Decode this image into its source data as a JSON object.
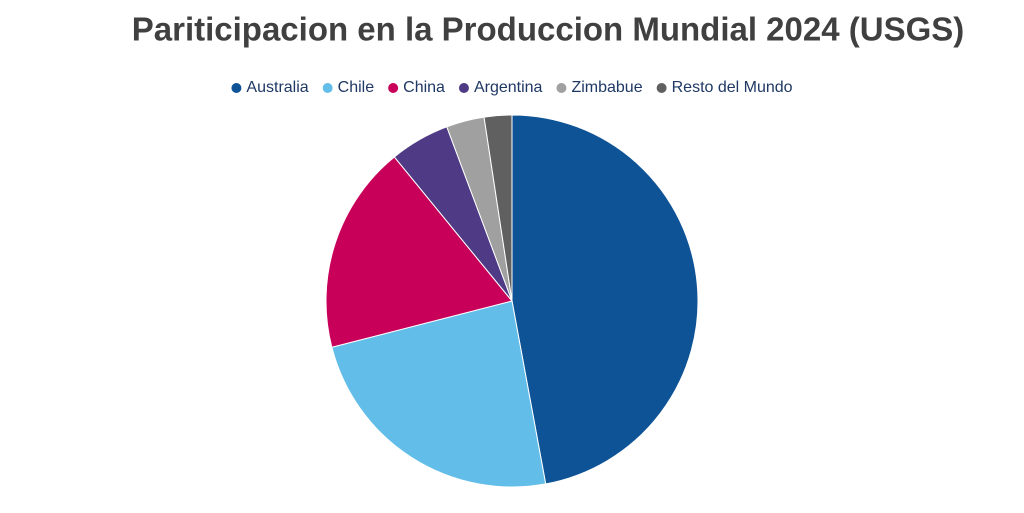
{
  "chart_data": {
    "type": "pie",
    "title": "Pariticipacion en la Produccion Mundial 2024 (USGS)",
    "categories": [
      "Australia",
      "Chile",
      "China",
      "Argentina",
      "Zimbabue",
      "Resto del Mundo"
    ],
    "values": [
      47.1,
      23.9,
      18.1,
      5.2,
      3.3,
      2.4
    ],
    "colors": [
      "#0e5396",
      "#63bde9",
      "#c8005a",
      "#4e3a85",
      "#a0a0a0",
      "#606060"
    ],
    "legend": "top"
  }
}
